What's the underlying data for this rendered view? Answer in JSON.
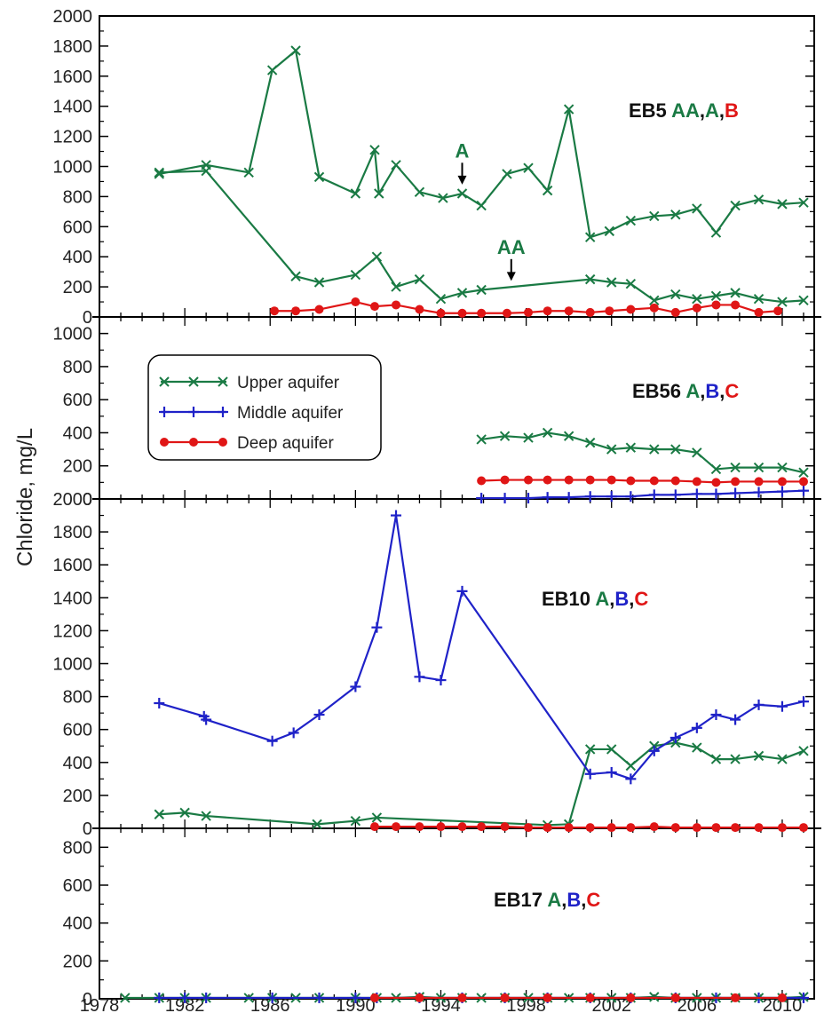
{
  "colors": {
    "upper": "#1a7a44",
    "middle": "#1f22c8",
    "deep": "#e01616",
    "label_black": "#111111",
    "axis": "#000000"
  },
  "legend": [
    {
      "name": "Upper aquifer",
      "series": "upper",
      "marker": "x"
    },
    {
      "name": "Middle aquifer",
      "series": "middle",
      "marker": "plus"
    },
    {
      "name": "Deep aquifer",
      "series": "deep",
      "marker": "dot"
    }
  ],
  "chart_data": {
    "type": "line",
    "ylabel": "Chloride, mg/L",
    "xlabel": "",
    "xlim": [
      1978,
      2011.5
    ],
    "x_ticks": [
      "1978",
      "1982",
      "1986",
      "1990",
      "1994",
      "1998",
      "2002",
      "2006",
      "2010"
    ],
    "legend_position": "panel 2, left",
    "grid": false,
    "panels": [
      {
        "label": {
          "well": "EB5",
          "parts": [
            {
              "text": "AA",
              "series": "upper"
            },
            {
              "text": ",",
              "series": "black"
            },
            {
              "text": "A",
              "series": "upper"
            },
            {
              "text": ",",
              "series": "black"
            },
            {
              "text": "B",
              "series": "deep"
            }
          ]
        },
        "ylim": [
          0,
          2000
        ],
        "y_ticks": [
          "0",
          "200",
          "400",
          "600",
          "800",
          "1000",
          "1200",
          "1400",
          "1600",
          "1800",
          "2000"
        ],
        "annotations": [
          {
            "text": "A",
            "series": "upper",
            "x": 1995.0,
            "y_top": 1060,
            "y_tip": 880
          },
          {
            "text": "AA",
            "series": "upper",
            "x": 1997.3,
            "y_top": 420,
            "y_tip": 240
          }
        ],
        "series": [
          {
            "name": "A",
            "color": "upper",
            "marker": "x",
            "x": [
              1980.8,
              1983,
              1985,
              1986.1,
              1987.2,
              1988.3,
              1990,
              1990.9,
              1991.1,
              1991.9,
              1993,
              1994.1,
              1995,
              1995.9,
              1997.1,
              1998.1,
              1999,
              2000,
              2001,
              2001.9,
              2002.9,
              2004,
              2005,
              2006,
              2006.9,
              2007.8,
              2008.9,
              2010,
              2011
            ],
            "values": [
              950,
              1010,
              960,
              1640,
              1770,
              930,
              820,
              1110,
              820,
              1010,
              830,
              790,
              820,
              740,
              950,
              990,
              840,
              1380,
              530,
              570,
              640,
              670,
              680,
              720,
              560,
              740,
              780,
              750,
              760
            ]
          },
          {
            "name": "AA",
            "color": "upper",
            "marker": "x",
            "x": [
              1980.8,
              1983,
              1987.2,
              1988.3,
              1990,
              1991,
              1991.9,
              1993,
              1994,
              1995,
              1995.9,
              2001,
              2002,
              2002.9,
              2004,
              2005,
              2006,
              2006.9,
              2007.8,
              2008.9,
              2010,
              2011
            ],
            "values": [
              960,
              970,
              270,
              230,
              280,
              400,
              200,
              250,
              120,
              160,
              180,
              250,
              230,
              220,
              110,
              150,
              120,
              140,
              160,
              120,
              100,
              110
            ]
          },
          {
            "name": "B",
            "color": "deep",
            "marker": "dot",
            "x": [
              1986.2,
              1987.2,
              1988.3,
              1990,
              1990.9,
              1991.9,
              1993,
              1994,
              1995,
              1995.9,
              1997.1,
              1998.1,
              1999,
              2000,
              2001,
              2001.9,
              2002.9,
              2004,
              2005,
              2006,
              2006.9,
              2007.8,
              2008.9,
              2009.8
            ],
            "values": [
              40,
              40,
              50,
              100,
              70,
              80,
              50,
              25,
              25,
              25,
              25,
              30,
              40,
              40,
              30,
              40,
              50,
              60,
              30,
              60,
              80,
              80,
              30,
              40
            ]
          }
        ]
      },
      {
        "label": {
          "well": "EB56",
          "parts": [
            {
              "text": "A",
              "series": "upper"
            },
            {
              "text": ",",
              "series": "black"
            },
            {
              "text": "B",
              "series": "middle"
            },
            {
              "text": ",",
              "series": "black"
            },
            {
              "text": "C",
              "series": "deep"
            }
          ]
        },
        "ylim": [
          0,
          1100
        ],
        "y_ticks": [
          "0",
          "200",
          "400",
          "600",
          "800",
          "1000"
        ],
        "series": [
          {
            "name": "A",
            "color": "upper",
            "marker": "x",
            "x": [
              1995.9,
              1997,
              1998.1,
              1999,
              2000,
              2001,
              2002,
              2002.9,
              2004,
              2005,
              2006,
              2006.9,
              2007.8,
              2008.9,
              2010,
              2011
            ],
            "values": [
              360,
              380,
              370,
              400,
              380,
              340,
              300,
              310,
              300,
              300,
              280,
              180,
              190,
              190,
              190,
              160
            ]
          },
          {
            "name": "B",
            "color": "middle",
            "marker": "plus",
            "x": [
              1995.9,
              1997,
              1998.1,
              1999,
              2000,
              2001,
              2002,
              2002.9,
              2004,
              2005,
              2006,
              2006.9,
              2007.8,
              2008.9,
              2010,
              2011
            ],
            "values": [
              5,
              5,
              5,
              10,
              10,
              15,
              15,
              15,
              25,
              25,
              30,
              30,
              35,
              40,
              45,
              50
            ]
          },
          {
            "name": "C",
            "color": "deep",
            "marker": "dot",
            "x": [
              1995.9,
              1997,
              1998.1,
              1999,
              2000,
              2001,
              2002,
              2002.9,
              2004,
              2005,
              2006,
              2006.9,
              2007.8,
              2008.9,
              2010,
              2011
            ],
            "values": [
              110,
              115,
              115,
              115,
              115,
              115,
              115,
              110,
              110,
              110,
              105,
              100,
              105,
              105,
              105,
              105
            ]
          }
        ]
      },
      {
        "label": {
          "well": "EB10",
          "parts": [
            {
              "text": "A",
              "series": "upper"
            },
            {
              "text": ",",
              "series": "black"
            },
            {
              "text": "B",
              "series": "middle"
            },
            {
              "text": ",",
              "series": "black"
            },
            {
              "text": "C",
              "series": "deep"
            }
          ]
        },
        "ylim": [
          0,
          2000
        ],
        "y_ticks": [
          "0",
          "200",
          "400",
          "600",
          "800",
          "1000",
          "1200",
          "1400",
          "1600",
          "1800",
          "2000"
        ],
        "series": [
          {
            "name": "A",
            "color": "upper",
            "marker": "x",
            "x": [
              1980.8,
              1982,
              1983,
              1988.2,
              1990,
              1991,
              1999,
              2000,
              2001,
              2002,
              2002.9,
              2004,
              2005,
              2006,
              2006.9,
              2007.8,
              2008.9,
              2010,
              2011
            ],
            "values": [
              85,
              95,
              75,
              25,
              45,
              65,
              20,
              25,
              480,
              480,
              380,
              500,
              520,
              490,
              420,
              420,
              440,
              420,
              470
            ]
          },
          {
            "name": "B",
            "color": "middle",
            "marker": "plus",
            "x": [
              1980.8,
              1982.9,
              1983,
              1986.1,
              1987.1,
              1988.3,
              1990,
              1991,
              1991.9,
              1993,
              1994,
              1995,
              2001,
              2002,
              2002.9,
              2004,
              2005,
              2006,
              2006.9,
              2007.8,
              2008.9,
              2010,
              2011
            ],
            "values": [
              760,
              680,
              660,
              530,
              580,
              690,
              860,
              1220,
              1900,
              920,
              900,
              1440,
              330,
              340,
              300,
              470,
              550,
              610,
              690,
              660,
              750,
              740,
              770
            ]
          },
          {
            "name": "C",
            "color": "deep",
            "marker": "dot",
            "x": [
              1990.9,
              1991.9,
              1993,
              1994,
              1995,
              1995.9,
              1997,
              1998.1,
              1999,
              2000,
              2001,
              2002,
              2002.9,
              2004,
              2005,
              2006,
              2006.9,
              2007.8,
              2008.9,
              2010,
              2011
            ],
            "values": [
              10,
              10,
              10,
              10,
              10,
              10,
              10,
              5,
              5,
              5,
              5,
              5,
              5,
              10,
              5,
              5,
              5,
              5,
              5,
              5,
              5
            ]
          }
        ]
      },
      {
        "label": {
          "well": "EB17",
          "parts": [
            {
              "text": "A",
              "series": "upper"
            },
            {
              "text": ",",
              "series": "black"
            },
            {
              "text": "B",
              "series": "middle"
            },
            {
              "text": ",",
              "series": "black"
            },
            {
              "text": "C",
              "series": "deep"
            }
          ]
        },
        "ylim": [
          0,
          900
        ],
        "y_ticks": [
          "0",
          "200",
          "400",
          "600",
          "800"
        ],
        "series": [
          {
            "name": "A",
            "color": "upper",
            "marker": "x",
            "x": [
              1979.2,
              1980.8,
              1982,
              1983,
              1985,
              1986.1,
              1987.2,
              1988.3,
              1990,
              1991,
              1991.9,
              1993,
              1994,
              1995,
              1995.9,
              1997,
              1998.1,
              1999,
              2000,
              2001,
              2002,
              2002.9,
              2004,
              2005,
              2006,
              2006.9,
              2007.8,
              2008.9,
              2010,
              2011
            ],
            "values": [
              5,
              5,
              5,
              5,
              5,
              5,
              5,
              5,
              5,
              5,
              5,
              10,
              5,
              5,
              5,
              5,
              5,
              5,
              5,
              5,
              5,
              5,
              10,
              5,
              5,
              5,
              5,
              5,
              5,
              10
            ]
          },
          {
            "name": "B",
            "color": "middle",
            "marker": "plus",
            "x": [
              1980.8,
              1982,
              1983,
              1986.1,
              1988.3,
              1990,
              1991,
              1993,
              1995,
              1997,
              1999,
              2001,
              2002.9,
              2005,
              2006.9,
              2008.9,
              2011
            ],
            "values": [
              5,
              5,
              5,
              5,
              5,
              5,
              5,
              5,
              5,
              5,
              5,
              5,
              5,
              5,
              5,
              5,
              5
            ]
          },
          {
            "name": "C",
            "color": "deep",
            "marker": "dot",
            "x": [
              1990.9,
              1993,
              1995,
              1997,
              1999,
              2001,
              2002.9,
              2005,
              2007.8,
              2010
            ],
            "values": [
              5,
              5,
              5,
              5,
              5,
              5,
              5,
              5,
              5,
              5
            ]
          }
        ]
      }
    ]
  }
}
